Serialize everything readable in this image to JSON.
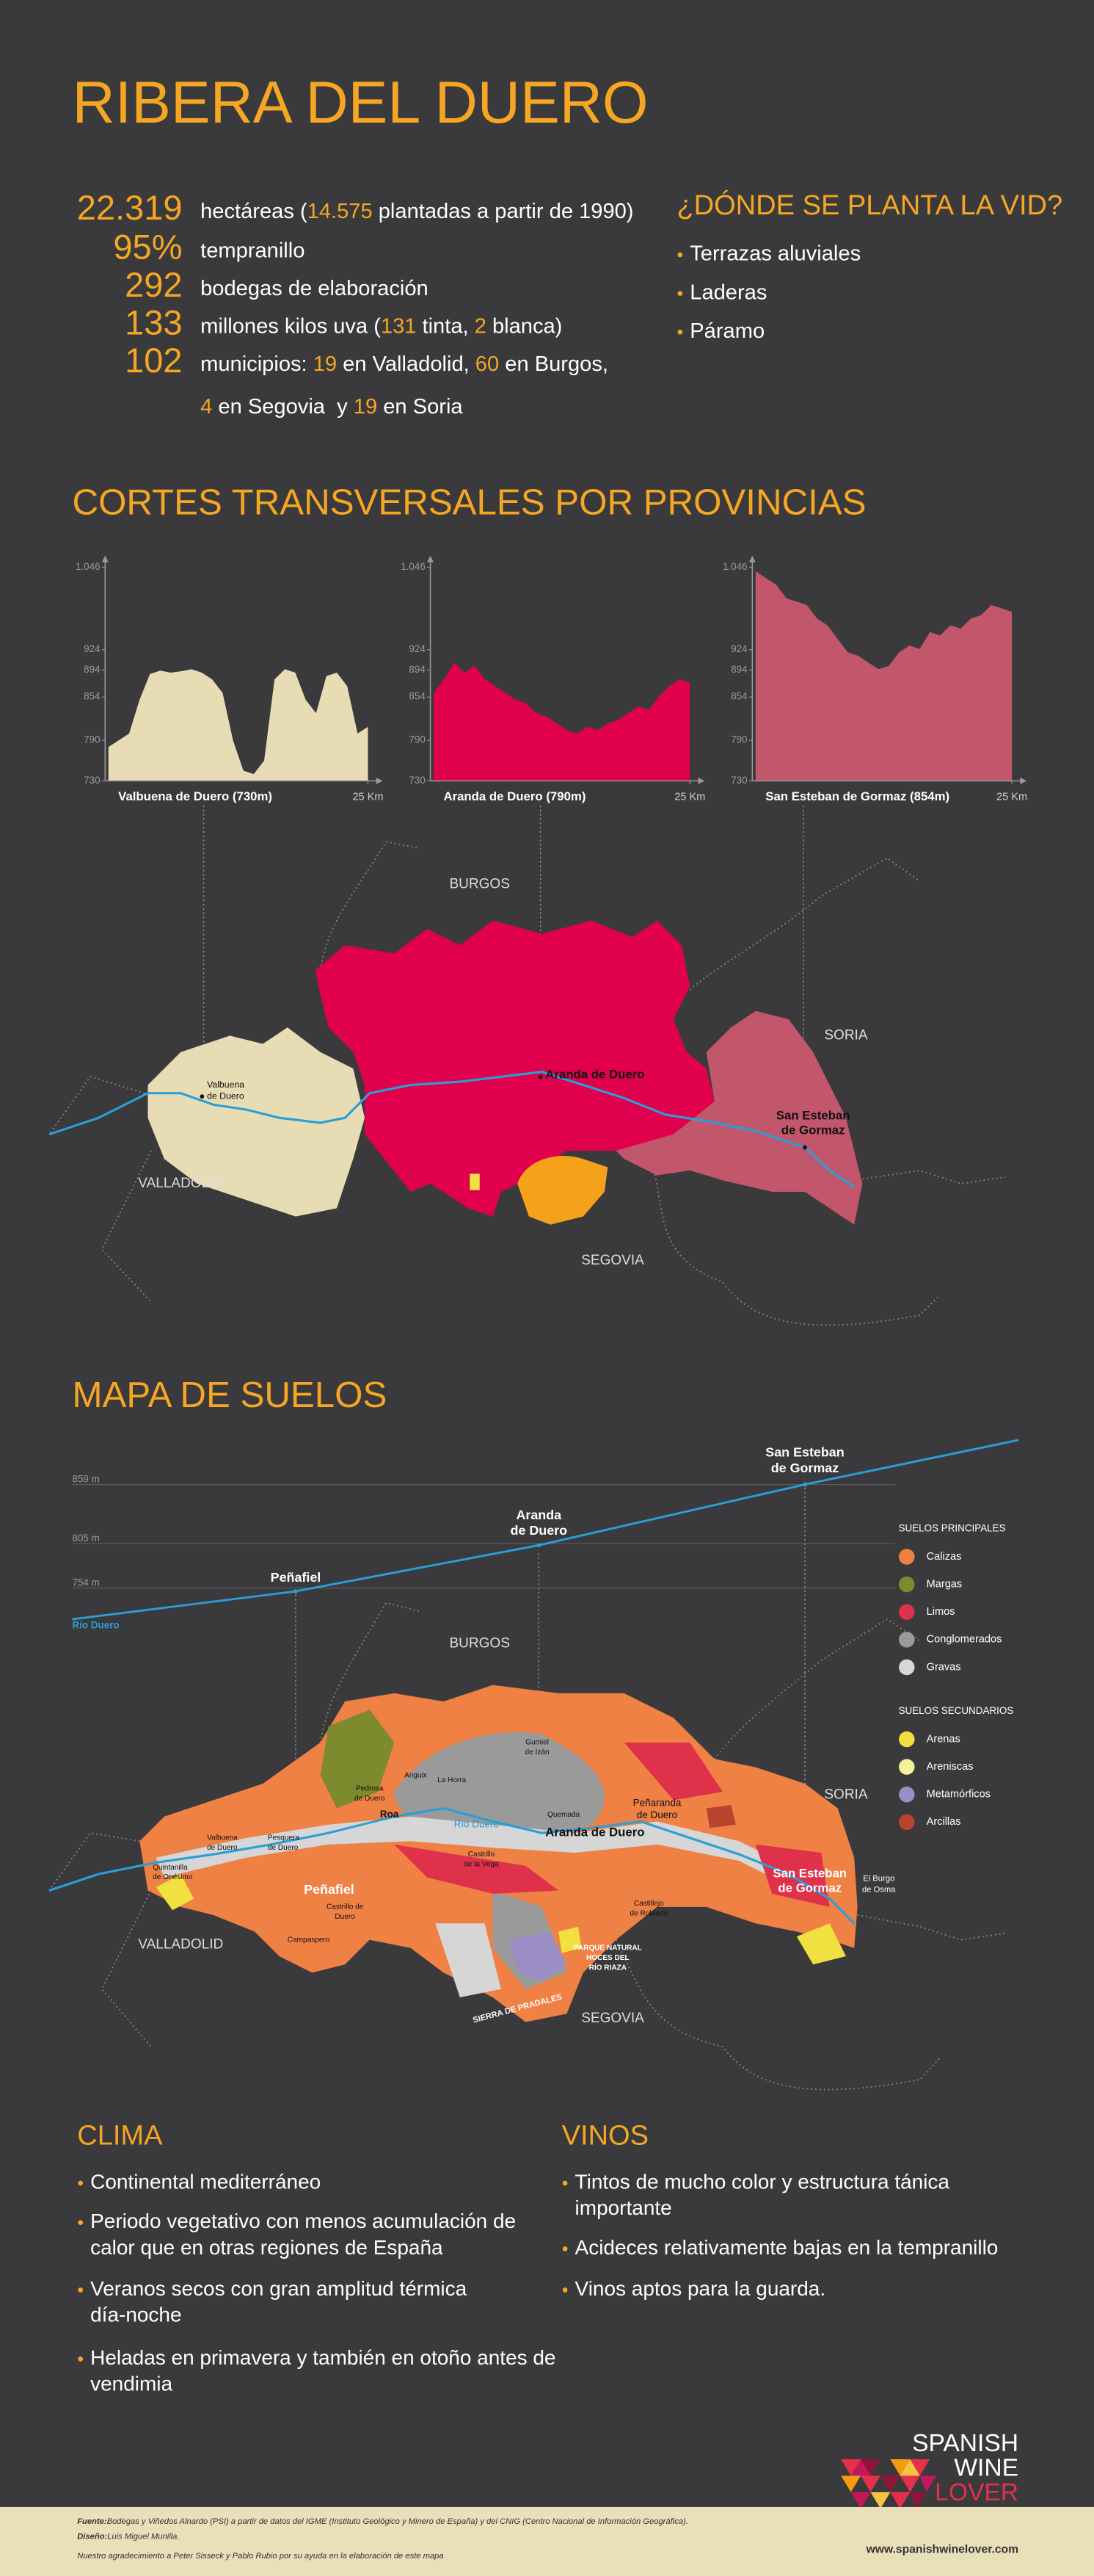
{
  "header": {
    "title": "RIBERA DEL DUERO"
  },
  "stats": {
    "rows": [
      {
        "figure": "22.319",
        "text": [
          "hectáreas (",
          {
            "text": "14.575",
            "accent": true
          },
          " plantadas a partir de 1990)"
        ]
      },
      {
        "figure": "95%",
        "text": [
          "tempranillo"
        ]
      },
      {
        "figure": "292",
        "text": [
          "bodegas de elaboración"
        ]
      },
      {
        "figure": "133",
        "text": [
          "millones kilos uva (",
          {
            "text": "131",
            "accent": true
          },
          " tinta, ",
          {
            "text": "2",
            "accent": true
          },
          " blanca)"
        ]
      },
      {
        "figure": "102",
        "text": [
          "municipios: ",
          {
            "text": "19",
            "accent": true
          },
          " en Valladolid, ",
          {
            "text": "60",
            "accent": true
          },
          " en Burgos,"
        ]
      },
      {
        "text": [
          {
            "text": "4",
            "accent": true
          },
          " en Segovia  y ",
          {
            "text": "19",
            "accent": true
          },
          " en Soria"
        ]
      }
    ]
  },
  "planting": {
    "title": "¿DÓNDE SE PLANTA LA VID?",
    "items": [
      "Terrazas aluviales",
      "Laderas",
      "Páramo"
    ]
  },
  "profiles_title": "CORTES TRANSVERSALES POR PROVINCIAS",
  "chart_data": [
    {
      "type": "area",
      "color": "#e8dcb5",
      "xlabel": "Valbuena de Duero (730m)",
      "x": [
        0,
        1,
        2,
        3,
        4,
        5,
        6,
        7,
        8,
        9,
        10,
        11,
        12,
        13,
        14,
        15,
        16,
        17,
        18,
        19,
        20,
        21,
        22,
        23,
        24,
        25
      ],
      "values": [
        780,
        790,
        800,
        850,
        888,
        893,
        890,
        892,
        895,
        890,
        880,
        860,
        790,
        745,
        740,
        760,
        880,
        895,
        890,
        850,
        830,
        885,
        890,
        870,
        800,
        810
      ],
      "xlim": [
        0,
        25
      ],
      "xticks": [
        {
          "value": 25,
          "label": "25 Km"
        }
      ],
      "ylim": [
        730,
        1046
      ],
      "yticks": [
        {
          "value": 1046,
          "label": "1.046"
        },
        924,
        894,
        854,
        790,
        730
      ]
    },
    {
      "type": "area",
      "color": "#e0004d",
      "xlabel": "Aranda de Duero (790m)",
      "x": [
        0,
        1,
        2,
        3,
        4,
        5,
        6,
        7,
        8,
        9,
        10,
        11,
        12,
        13,
        14,
        15,
        16,
        17,
        18,
        19,
        20,
        21,
        22,
        23,
        24,
        25
      ],
      "values": [
        860,
        880,
        905,
        890,
        900,
        880,
        870,
        860,
        850,
        845,
        830,
        825,
        815,
        805,
        800,
        810,
        805,
        815,
        820,
        830,
        840,
        835,
        855,
        870,
        880,
        875
      ],
      "xlim": [
        0,
        25
      ],
      "xticks": [
        {
          "value": 25,
          "label": "25 Km"
        }
      ],
      "ylim": [
        730,
        1046
      ],
      "yticks": [
        {
          "value": 1046,
          "label": "1.046"
        },
        924,
        894,
        854,
        790,
        730
      ]
    },
    {
      "type": "area",
      "color": "#c2566a",
      "xlabel": "San Esteban de Gormaz (854m)",
      "x": [
        0,
        1,
        2,
        3,
        4,
        5,
        6,
        7,
        8,
        9,
        10,
        11,
        12,
        13,
        14,
        15,
        16,
        17,
        18,
        19,
        20,
        21,
        22,
        23,
        24,
        25
      ],
      "values": [
        1040,
        1030,
        1020,
        1000,
        995,
        990,
        970,
        960,
        940,
        920,
        915,
        905,
        895,
        900,
        920,
        930,
        925,
        950,
        945,
        960,
        955,
        970,
        975,
        990,
        985,
        980
      ],
      "xlim": [
        0,
        25
      ],
      "xticks": [
        {
          "value": 25,
          "label": "25 Km"
        }
      ],
      "ylim": [
        730,
        1046
      ],
      "yticks": [
        {
          "value": 1046,
          "label": "1.046"
        },
        924,
        894,
        854,
        790,
        730
      ]
    }
  ],
  "province_map": {
    "provinces": [
      "BURGOS",
      "SORIA",
      "VALLADOLID",
      "SEGOVIA"
    ],
    "towns": [
      [
        "Valbuena",
        "de Duero"
      ],
      [
        "Aranda de Duero"
      ],
      [
        "San Esteban",
        "de Gormaz"
      ]
    ]
  },
  "soil_section": {
    "title": "MAPA DE SUELOS",
    "levels": [
      "859 m",
      "805 m",
      "754 m"
    ],
    "river": "Río Duero",
    "places": [
      [
        "Peñafiel"
      ],
      [
        "Aranda",
        "de Duero"
      ],
      [
        "San Esteban",
        "de Gormaz"
      ]
    ]
  },
  "soil_legend": {
    "groups": [
      {
        "title": "SUELOS PRINCIPALES",
        "items": [
          {
            "label": "Calizas",
            "color": "#ef8145"
          },
          {
            "label": "Margas",
            "color": "#7d8a2e"
          },
          {
            "label": "Limos",
            "color": "#e0314b"
          },
          {
            "label": "Conglomerados",
            "color": "#9a9a9a"
          },
          {
            "label": "Gravas",
            "color": "#d8d8d8"
          }
        ]
      },
      {
        "title": "SUELOS SECUNDARIOS",
        "items": [
          {
            "label": "Arenas",
            "color": "#f0e040"
          },
          {
            "label": "Areniscas",
            "color": "#f6f09a"
          },
          {
            "label": "Metamórficos",
            "color": "#9b8ec4"
          },
          {
            "label": "Arcillas",
            "color": "#b8442e"
          }
        ]
      }
    ]
  },
  "soil_map": {
    "provinces": [
      "BURGOS",
      "SORIA",
      "VALLADOLID",
      "SEGOVIA"
    ],
    "towns": [
      [
        "Valbuena",
        "de Duero"
      ],
      [
        "Quintanilla",
        "de Onésimo"
      ],
      [
        "Pesquera",
        "de Duero"
      ],
      [
        "Peñafiel"
      ],
      [
        "Castrillo de",
        "Duero"
      ],
      [
        "Campaspero"
      ],
      [
        "Pedrosa",
        "de Duero"
      ],
      [
        "Anguix"
      ],
      [
        "La Horra"
      ],
      [
        "Roa"
      ],
      [
        "Gumiel",
        "de Izán"
      ],
      [
        "Río Duero"
      ],
      [
        "Aranda de Duero"
      ],
      [
        "Quemada"
      ],
      [
        "Peñaranda",
        "de Duero"
      ],
      [
        "Castrillo",
        "de la Vega"
      ],
      [
        "Castillejo",
        "de Robledo"
      ],
      [
        "San Esteban",
        "de Gormaz"
      ],
      [
        "El Burgo",
        "de Osma"
      ],
      [
        "PARQUE NATURAL",
        "HOCES DEL",
        "RÍO RIAZA"
      ],
      [
        "SIERRA DE PRADALES"
      ]
    ]
  },
  "climate": {
    "title": "CLIMA",
    "items": [
      [
        "Continental mediterráneo"
      ],
      [
        "Periodo vegetativo con menos acumulación de",
        "calor que en otras regiones de España"
      ],
      [
        "Veranos secos con gran amplitud térmica",
        "día-noche"
      ],
      [
        "Heladas en primavera y también en otoño antes de",
        "vendimia"
      ]
    ]
  },
  "wines": {
    "title": "VINOS",
    "items": [
      [
        "Tintos de mucho color y estructura tánica",
        "importante"
      ],
      [
        "Acideces relativamente bajas en la tempranillo"
      ],
      [
        "Vinos aptos para la guarda."
      ]
    ]
  },
  "logo": {
    "lines": [
      "SPANISH",
      "WINE",
      "LOVER"
    ]
  },
  "footer": {
    "notes": [
      {
        "label": "Fuente:",
        "text": "Bodegas y Viñedos Alnardo (PSI) a partir de datos del IGME (Instituto Geológico y Minero de España) y del CNIG (Centro Nacional de Información Geográfica)."
      },
      {
        "label": "Diseño:",
        "text": "Luis Miguel Munilla."
      },
      {
        "text": "Nuestro agradecimiento a Peter Sisseck y Pablo Rubio por su ayuda en la elaboración de este mapa"
      }
    ],
    "url": "www.spanishwinelover.com"
  }
}
